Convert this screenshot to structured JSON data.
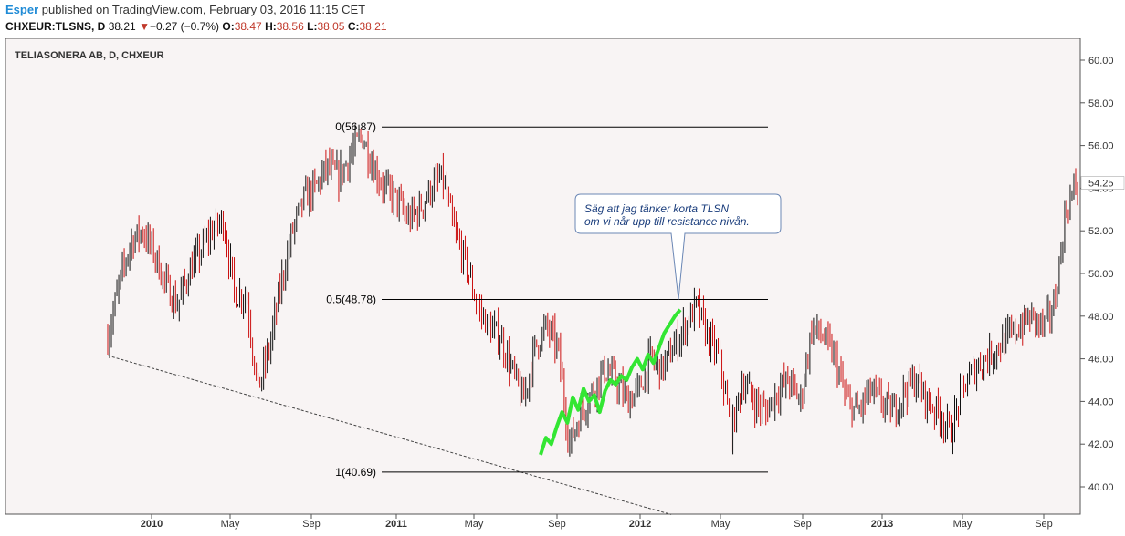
{
  "header": {
    "author": "Esper",
    "published_text": "published on TradingView.com, February 03, 2016 11:15 CET",
    "symbol": "CHXEUR:TLSNS, D",
    "last": "38.21",
    "change_arrow": "▼",
    "change": "−0.27 (−0.7%)",
    "o_label": "O:",
    "o_value": "38.47",
    "h_label": "H:",
    "h_value": "38.56",
    "l_label": "L:",
    "l_value": "38.05",
    "c_label": "C:",
    "c_value": "38.21"
  },
  "chart_data": {
    "type": "candlestick",
    "title": "TELIASONERA AB, D, CHXEUR",
    "y_ticks": [
      "60.00",
      "58.00",
      "56.00",
      "54.00",
      "52.00",
      "50.00",
      "48.00",
      "46.00",
      "44.00",
      "42.00",
      "40.00"
    ],
    "ylim": [
      39.0,
      61.0
    ],
    "x_ticks": [
      "2010",
      "May",
      "Sep",
      "2011",
      "May",
      "Sep",
      "2012",
      "May",
      "Sep",
      "2013",
      "May",
      "Sep"
    ],
    "last_price_label": "54.25",
    "last_price_value": 54.25,
    "fib_levels": [
      {
        "label": "0(56.87)",
        "value": 56.87
      },
      {
        "label": "0.5(48.78)",
        "value": 48.78
      },
      {
        "label": "1(40.69)",
        "value": 40.69
      }
    ],
    "annotation": "Säg att jag tänker korta TLSN om vi når upp till resistance nivån.",
    "trendline": {
      "from": [
        0.0,
        46.15
      ],
      "to": [
        0.58,
        38.7
      ]
    },
    "approx_closes": [
      47.0,
      49.5,
      51.5,
      52.0,
      51.0,
      49.5,
      48.5,
      50.0,
      51.0,
      52.0,
      52.5,
      49.0,
      49.0,
      44.5,
      46.5,
      49.5,
      52.0,
      53.5,
      54.0,
      55.0,
      54.5,
      55.5,
      56.5,
      55.0,
      54.0,
      53.5,
      52.5,
      53.0,
      54.0,
      54.5,
      52.0,
      50.5,
      48.5,
      47.5,
      47.0,
      45.5,
      44.0,
      46.5,
      47.5,
      46.5,
      42.0,
      43.5,
      44.5,
      45.5,
      45.0,
      44.0,
      44.5,
      46.0,
      45.5,
      46.5,
      47.5,
      48.5,
      47.0,
      46.0,
      42.5,
      45.0,
      44.0,
      43.5,
      44.5,
      45.0,
      44.0,
      47.5,
      47.0,
      46.0,
      44.0,
      43.5,
      44.5,
      44.0,
      43.5,
      44.5,
      45.0,
      44.0,
      43.5,
      42.5,
      44.5,
      45.5,
      46.0,
      46.5,
      47.0,
      47.5,
      48.0,
      47.5,
      48.5,
      53.0,
      54.25
    ],
    "green_path_values": [
      41.5,
      42.3,
      42.0,
      42.8,
      43.5,
      43.0,
      44.2,
      43.6,
      44.6,
      44.0,
      44.3,
      43.5,
      44.5,
      45.0,
      44.8,
      45.2,
      45.0,
      45.6,
      46.0,
      45.5,
      46.2,
      45.8,
      46.5,
      47.2,
      47.6,
      48.0,
      48.3
    ]
  }
}
